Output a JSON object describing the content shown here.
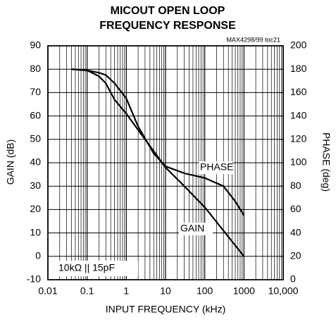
{
  "chart_data": {
    "type": "line",
    "title": [
      "MICOUT OPEN LOOP",
      "FREQUENCY RESPONSE"
    ],
    "subtitle": "MAX4298/99 toc21",
    "x_label": "INPUT FREQUENCY (kHz)",
    "y_label": "GAIN (dB)",
    "y2_label": "PHASE (deg)",
    "annotation": "10kΩ || 15pF",
    "x_scale": "log",
    "grid": true,
    "xlim": [
      0.01,
      10000
    ],
    "xticks": [
      0.01,
      0.1,
      1,
      10,
      100,
      1000,
      {
        "value": 10000,
        "label": "10,000"
      }
    ],
    "ylim": [
      -10,
      90
    ],
    "yticks": [
      -10,
      0,
      10,
      20,
      30,
      40,
      50,
      60,
      70,
      80,
      90
    ],
    "y2lim": [
      0,
      200
    ],
    "y2ticks": [
      0,
      20,
      40,
      60,
      80,
      100,
      120,
      140,
      160,
      180,
      200
    ],
    "series": [
      {
        "name": "GAIN",
        "color": "#000000",
        "x": [
          0.04,
          0.1,
          0.2,
          0.3,
          0.5,
          1,
          2,
          5,
          10,
          30,
          100,
          300,
          1000
        ],
        "values": [
          80,
          79.5,
          77,
          74,
          67,
          61,
          54,
          45,
          38,
          30,
          21,
          11,
          0
        ]
      },
      {
        "name": "PHASE",
        "color": "#000000",
        "axis": "y2",
        "x": [
          0.04,
          0.1,
          0.2,
          0.3,
          0.5,
          1,
          2,
          5,
          10,
          30,
          100,
          300,
          600,
          1000
        ],
        "values": [
          180,
          179,
          177,
          175,
          168,
          155,
          131,
          108,
          97,
          91,
          87,
          80,
          67,
          55
        ]
      }
    ]
  }
}
